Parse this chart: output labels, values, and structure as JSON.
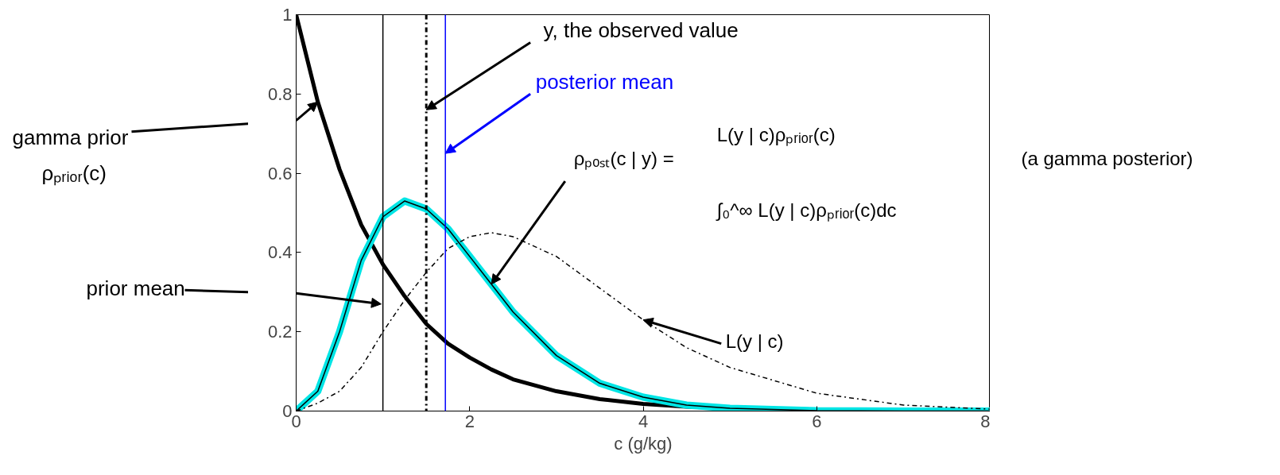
{
  "chart_data": {
    "type": "line",
    "xlabel": "c (g/kg)",
    "xlim": [
      0,
      8
    ],
    "ylim": [
      0,
      1
    ],
    "xticks": [
      0,
      2,
      4,
      6,
      8
    ],
    "yticks": [
      0,
      0.2,
      0.4,
      0.6,
      0.8,
      1
    ],
    "grid": false,
    "x": [
      0,
      0.25,
      0.5,
      0.75,
      1,
      1.25,
      1.5,
      1.75,
      2,
      2.25,
      2.5,
      3,
      3.5,
      4,
      4.5,
      5,
      6,
      7,
      8
    ],
    "series": [
      {
        "color": "#000000",
        "values": [
          1,
          0.78,
          0.61,
          0.47,
          0.37,
          0.29,
          0.22,
          0.17,
          0.135,
          0.105,
          0.08,
          0.05,
          0.03,
          0.018,
          0.011,
          0.007,
          0.002,
          0.001,
          0
        ]
      },
      {
        "color": "#00e5e5",
        "values": [
          0,
          0.05,
          0.2,
          0.38,
          0.49,
          0.53,
          0.51,
          0.46,
          0.39,
          0.32,
          0.25,
          0.14,
          0.07,
          0.035,
          0.015,
          0.007,
          0.001,
          0,
          0
        ]
      },
      {
        "color": "#000000",
        "values": [
          0,
          0.05,
          0.2,
          0.38,
          0.49,
          0.53,
          0.51,
          0.46,
          0.39,
          0.32,
          0.25,
          0.14,
          0.07,
          0.035,
          0.015,
          0.007,
          0.001,
          0,
          0
        ]
      },
      {
        "color": "#000000",
        "line_style": "dashdot",
        "values": [
          0,
          0.02,
          0.05,
          0.11,
          0.2,
          0.28,
          0.35,
          0.41,
          0.44,
          0.45,
          0.44,
          0.39,
          0.31,
          0.23,
          0.16,
          0.11,
          0.045,
          0.015,
          0.005
        ]
      }
    ],
    "ref_lines": [
      {
        "axis": "x",
        "value": 1,
        "color": "#000000",
        "line_style": "solid"
      },
      {
        "axis": "x",
        "value": 1.5,
        "color": "#000000",
        "line_style": "dashdot"
      },
      {
        "axis": "x",
        "value": 1.72,
        "color": "#0000ff",
        "line_style": "solid"
      }
    ],
    "annotations": [
      "gamma prior",
      "ρₚᵣᵢₒᵣ(c)",
      "prior mean",
      {
        "text": "y, the observed value",
        "x": 1.5,
        "y": 0.76
      },
      {
        "text": "posterior mean",
        "x": 1.72,
        "y": 0.65
      },
      {
        "text": "ρₚₒₛₜ(c | y) =",
        "x": 2.25,
        "y": 0.32
      },
      "L(y | c)ρₚᵣᵢₒᵣ(c)",
      "∫₀^∞ L(y | c)ρₚᵣᵢₒᵣ(c)dc",
      "(a gamma posterior)",
      {
        "text": "L(y | c)",
        "x": 4,
        "y": 0.23
      }
    ]
  }
}
